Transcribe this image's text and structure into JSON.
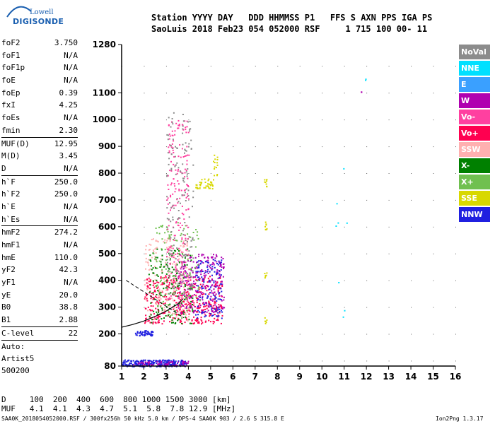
{
  "logo": {
    "line1": "Lowell",
    "line2": "DIGISONDE"
  },
  "header": {
    "labels": "Station YYYY DAY   DDD HHMMSS P1   FFS S AXN PPS IGA PS",
    "values": "SaoLuis 2018 Feb23 054 052000 RSF     1 715 100 00- 11"
  },
  "params": [
    {
      "k": "foF2",
      "v": "3.750"
    },
    {
      "k": "foF1",
      "v": "N/A"
    },
    {
      "k": "foF1p",
      "v": "N/A"
    },
    {
      "k": "foE",
      "v": "N/A"
    },
    {
      "k": "foEp",
      "v": "0.39"
    },
    {
      "k": "fxI",
      "v": "4.25"
    },
    {
      "k": "foEs",
      "v": "N/A"
    },
    {
      "k": "fmin",
      "v": "2.30"
    },
    {
      "k": "MUF(D)",
      "v": "12.95",
      "sep": true
    },
    {
      "k": "M(D)",
      "v": "3.45"
    },
    {
      "k": "D",
      "v": "N/A"
    },
    {
      "k": "h`F",
      "v": "250.0",
      "sep": true
    },
    {
      "k": "h`F2",
      "v": "250.0"
    },
    {
      "k": "h`E",
      "v": "N/A"
    },
    {
      "k": "h`Es",
      "v": "N/A"
    },
    {
      "k": "hmF2",
      "v": "274.2",
      "sep": true
    },
    {
      "k": "hmF1",
      "v": "N/A"
    },
    {
      "k": "hmE",
      "v": "110.0"
    },
    {
      "k": "yF2",
      "v": "42.3"
    },
    {
      "k": "yF1",
      "v": "N/A"
    },
    {
      "k": "yE",
      "v": "20.0"
    },
    {
      "k": "B0",
      "v": "38.8"
    },
    {
      "k": "B1",
      "v": "2.88"
    },
    {
      "k": "C-level",
      "v": "22",
      "sep": true
    }
  ],
  "auto": {
    "l1": "Auto:",
    "l2": "Artist5",
    "l3": "500200"
  },
  "footer": {
    "d_line": "D     100  200  400  600  800 1000 1500 3000 [km]",
    "muf_line": "MUF   4.1  4.1  4.3  4.7  5.1  5.8  7.8 12.9 [MHz]",
    "info": "SAA0K_2018054052000.RSF / 300fx256h 50 kHz 5.0 km / DPS-4 SAA0K 903 / 2.6 S 315.8 E",
    "version": "Ion2Png 1.3.17"
  },
  "legend": [
    {
      "label": "NoVal",
      "color": "#8c8c8c"
    },
    {
      "label": "NNE",
      "color": "#00e0ff"
    },
    {
      "label": "E",
      "color": "#3aa0ff"
    },
    {
      "label": "W",
      "color": "#b000b0"
    },
    {
      "label": "Vo-",
      "color": "#ff40a0"
    },
    {
      "label": "Vo+",
      "color": "#ff0050"
    },
    {
      "label": "SSW",
      "color": "#ffb0b0"
    },
    {
      "label": "X-",
      "color": "#008000"
    },
    {
      "label": "X+",
      "color": "#70c050"
    },
    {
      "label": "SSE",
      "color": "#d8d800"
    },
    {
      "label": "NNW",
      "color": "#2020e0"
    }
  ],
  "chart_data": {
    "type": "scatter",
    "xlim": [
      1,
      16
    ],
    "ylim": [
      80,
      1280
    ],
    "x_ticks": [
      1,
      2,
      3,
      4,
      5,
      6,
      7,
      8,
      9,
      10,
      11,
      12,
      13,
      14,
      15,
      16
    ],
    "y_ticks": [
      80,
      200,
      300,
      400,
      500,
      600,
      700,
      800,
      900,
      1000,
      1100,
      1280
    ],
    "xlabel": "",
    "ylabel": "",
    "clouds": [
      {
        "color": "#2020e0",
        "x": [
          1.0,
          3.9
        ],
        "y": [
          80,
          105
        ],
        "n": 260
      },
      {
        "color": "#b000b0",
        "x": [
          1.5,
          4.0
        ],
        "y": [
          82,
          100
        ],
        "n": 60
      },
      {
        "color": "#2020e0",
        "x": [
          1.6,
          2.4
        ],
        "y": [
          195,
          215
        ],
        "n": 50
      },
      {
        "color": "#ff0050",
        "x": [
          2.0,
          5.5
        ],
        "y": [
          240,
          420
        ],
        "n": 420
      },
      {
        "color": "#b000b0",
        "x": [
          3.5,
          5.6
        ],
        "y": [
          280,
          500
        ],
        "n": 280
      },
      {
        "color": "#2020e0",
        "x": [
          4.3,
          5.5
        ],
        "y": [
          260,
          480
        ],
        "n": 120
      },
      {
        "color": "#ffb0b0",
        "x": [
          2.0,
          4.0
        ],
        "y": [
          250,
          560
        ],
        "n": 200
      },
      {
        "color": "#008000",
        "x": [
          2.2,
          4.2
        ],
        "y": [
          240,
          520
        ],
        "n": 160
      },
      {
        "color": "#70c050",
        "x": [
          2.4,
          4.5
        ],
        "y": [
          260,
          620
        ],
        "n": 120
      },
      {
        "color": "#ff40a0",
        "x": [
          3.0,
          4.0
        ],
        "y": [
          300,
          1000
        ],
        "n": 220
      },
      {
        "color": "#8c8c8c",
        "x": [
          3.0,
          4.2
        ],
        "y": [
          350,
          1030
        ],
        "n": 160
      },
      {
        "color": "#d8d800",
        "x": [
          4.3,
          5.1
        ],
        "y": [
          740,
          780
        ],
        "n": 40
      },
      {
        "color": "#d8d800",
        "x": [
          5.1,
          5.3
        ],
        "y": [
          780,
          880
        ],
        "n": 14
      },
      {
        "color": "#d8d800",
        "x": [
          7.4,
          7.5
        ],
        "y": [
          750,
          790
        ],
        "n": 8
      },
      {
        "color": "#d8d800",
        "x": [
          7.4,
          7.5
        ],
        "y": [
          590,
          620
        ],
        "n": 8
      },
      {
        "color": "#d8d800",
        "x": [
          7.4,
          7.5
        ],
        "y": [
          410,
          430
        ],
        "n": 6
      },
      {
        "color": "#d8d800",
        "x": [
          7.4,
          7.5
        ],
        "y": [
          240,
          265
        ],
        "n": 6
      },
      {
        "color": "#00e0ff",
        "x": [
          10.6,
          11.1
        ],
        "y": [
          260,
          940
        ],
        "n": 8
      },
      {
        "color": "#b000b0",
        "x": [
          11.7,
          11.8
        ],
        "y": [
          1100,
          1115
        ],
        "n": 2
      },
      {
        "color": "#00e0ff",
        "x": [
          11.9,
          12.0
        ],
        "y": [
          1140,
          1160
        ],
        "n": 2
      }
    ],
    "trace": {
      "x": [
        1.0,
        1.5,
        2.0,
        2.5,
        3.0,
        3.5,
        3.75
      ],
      "y": [
        225,
        235,
        248,
        265,
        285,
        310,
        330
      ]
    }
  }
}
